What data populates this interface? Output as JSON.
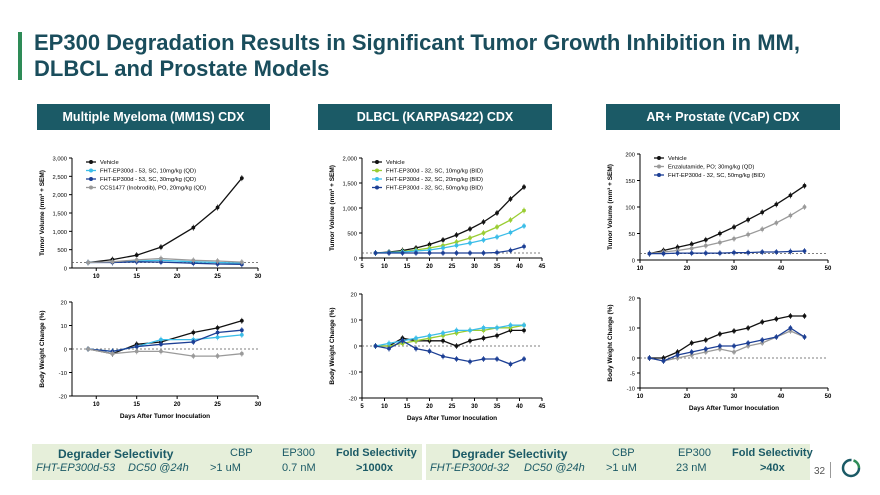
{
  "title": "EP300 Degradation Results in Significant Tumor Growth Inhibition in MM, DLBCL and Prostate Models",
  "panels": [
    {
      "header": "Multiple Myeloma (MM1S) CDX"
    },
    {
      "header": "DLBCL (KARPAS422) CDX"
    },
    {
      "header": "AR+ Prostate (VCaP) CDX"
    }
  ],
  "footer": {
    "left": {
      "heading": "Degrader Selectivity",
      "col1": "CBP",
      "col2": "EP300",
      "col3": "Fold Selectivity",
      "compound": "FHT-EP300d-53",
      "dc50": "DC50 @24h",
      "v1": ">1 uM",
      "v2": "0.7 nM",
      "v3": ">1000x"
    },
    "right": {
      "heading": "Degrader Selectivity",
      "col1": "CBP",
      "col2": "EP300",
      "col3": "Fold Selectivity",
      "compound": "FHT-EP300d-32",
      "dc50": "DC50 @24h",
      "v1": ">1 uM",
      "v2": "23 nM",
      "v3": ">40x"
    }
  },
  "page_number": "32",
  "colors": {
    "black": "#111111",
    "green": "#9acd32",
    "cyan": "#3bbde8",
    "navy": "#1c3f95",
    "grey": "#9a9a9a",
    "header": "#1b5a66",
    "footer_bg": "#e6efda"
  },
  "chart_data": [
    {
      "id": "mm-tumor",
      "type": "line",
      "ylabel": "Tumor Volume (mm³ + SEM)",
      "xlabel": "",
      "xlim": [
        7,
        30
      ],
      "ylim": [
        0,
        3000
      ],
      "xticks": [
        10,
        15,
        20,
        25,
        30
      ],
      "yticks": [
        0,
        500,
        1000,
        1500,
        2000,
        2500,
        3000
      ],
      "ytick_labels": [
        "0",
        "500",
        "1,000",
        "1,500",
        "2,000",
        "2,500",
        "3,000"
      ],
      "legend": [
        "Vehicle",
        "FHT-EP300d - 53, SC, 10mg/kg (QD)",
        "FHT-EP300d - 53, SC, 30mg/kg (QD)",
        "CCS1477 (Inobrodib), PO, 20mg/kg (QD)"
      ],
      "series": [
        {
          "name": "Vehicle",
          "color": "#111111",
          "x": [
            9,
            12,
            15,
            18,
            22,
            25,
            28
          ],
          "y": [
            150,
            230,
            350,
            570,
            1100,
            1650,
            2450
          ]
        },
        {
          "name": "FHT-EP300d - 53, SC, 10mg/kg (QD)",
          "color": "#3bbde8",
          "x": [
            9,
            12,
            15,
            18,
            22,
            25,
            28
          ],
          "y": [
            150,
            160,
            190,
            210,
            170,
            150,
            130
          ]
        },
        {
          "name": "FHT-EP300d - 53, SC, 30mg/kg (QD)",
          "color": "#1c3f95",
          "x": [
            9,
            12,
            15,
            18,
            22,
            25,
            28
          ],
          "y": [
            150,
            150,
            170,
            160,
            130,
            110,
            100
          ]
        },
        {
          "name": "CCS1477 (Inobrodib), PO, 20mg/kg (QD)",
          "color": "#9a9a9a",
          "x": [
            9,
            12,
            15,
            18,
            22,
            25,
            28
          ],
          "y": [
            150,
            170,
            220,
            260,
            210,
            190,
            160
          ]
        }
      ]
    },
    {
      "id": "dlbcl-tumor",
      "type": "line",
      "ylabel": "Tumor Volume (mm³ + SEM)",
      "xlabel": "",
      "xlim": [
        5,
        45
      ],
      "ylim": [
        0,
        2000
      ],
      "xticks": [
        5,
        10,
        15,
        20,
        25,
        30,
        35,
        40,
        45
      ],
      "yticks": [
        0,
        500,
        1000,
        1500,
        2000
      ],
      "ytick_labels": [
        "0",
        "500",
        "1,000",
        "1,500",
        "2,000"
      ],
      "legend": [
        "Vehicle",
        "FHT-EP300d - 32, SC, 10mg/kg (BID)",
        "FHT-EP300d - 32, SC, 20mg/kg (BID)",
        "FHT-EP300d - 32, SC, 50mg/kg (BID)"
      ],
      "series": [
        {
          "name": "Vehicle",
          "color": "#111111",
          "x": [
            8,
            11,
            14,
            17,
            20,
            23,
            26,
            29,
            32,
            35,
            38,
            41
          ],
          "y": [
            100,
            120,
            150,
            200,
            270,
            360,
            460,
            580,
            720,
            900,
            1180,
            1420
          ]
        },
        {
          "name": "FHT-EP300d - 32, SC, 10mg/kg (BID)",
          "color": "#9acd32",
          "x": [
            8,
            11,
            14,
            17,
            20,
            23,
            26,
            29,
            32,
            35,
            38,
            41
          ],
          "y": [
            100,
            110,
            130,
            160,
            200,
            250,
            320,
            400,
            500,
            620,
            760,
            950
          ]
        },
        {
          "name": "FHT-EP300d - 32, SC, 20mg/kg (BID)",
          "color": "#3bbde8",
          "x": [
            8,
            11,
            14,
            17,
            20,
            23,
            26,
            29,
            32,
            35,
            38,
            41
          ],
          "y": [
            100,
            110,
            120,
            140,
            160,
            200,
            250,
            300,
            360,
            420,
            510,
            640
          ]
        },
        {
          "name": "FHT-EP300d - 32, SC, 50mg/kg (BID)",
          "color": "#1c3f95",
          "x": [
            8,
            11,
            14,
            17,
            20,
            23,
            26,
            29,
            32,
            35,
            38,
            41
          ],
          "y": [
            100,
            100,
            100,
            100,
            100,
            100,
            100,
            100,
            100,
            110,
            150,
            230
          ]
        }
      ]
    },
    {
      "id": "prostate-tumor",
      "type": "line",
      "ylabel": "Tumor Volume (mm³ + SEM)",
      "xlabel": "",
      "xlim": [
        10,
        50
      ],
      "ylim": [
        0,
        200
      ],
      "xticks": [
        10,
        20,
        30,
        40,
        50
      ],
      "yticks": [
        0,
        50,
        100,
        150,
        200
      ],
      "ytick_labels": [
        "0",
        "50",
        "100",
        "150",
        "200"
      ],
      "legend": [
        "Vehicle",
        "Enzalutamide, PO; 30mg/kg (QD)",
        "FHT-EP300d - 32, SC, 50mg/kg (BID)"
      ],
      "series": [
        {
          "name": "Vehicle",
          "color": "#111111",
          "x": [
            12,
            15,
            18,
            21,
            24,
            27,
            30,
            33,
            36,
            39,
            42,
            45
          ],
          "y": [
            12,
            18,
            24,
            30,
            38,
            50,
            62,
            76,
            90,
            105,
            122,
            140
          ]
        },
        {
          "name": "Enzalutamide, PO; 30mg/kg (QD)",
          "color": "#9a9a9a",
          "x": [
            12,
            15,
            18,
            21,
            24,
            27,
            30,
            33,
            36,
            39,
            42,
            45
          ],
          "y": [
            12,
            15,
            18,
            22,
            27,
            33,
            40,
            48,
            58,
            70,
            84,
            100
          ]
        },
        {
          "name": "FHT-EP300d - 32, SC, 50mg/kg (BID)",
          "color": "#1c3f95",
          "x": [
            12,
            15,
            18,
            21,
            24,
            27,
            30,
            33,
            36,
            39,
            42,
            45
          ],
          "y": [
            12,
            12,
            13,
            13,
            13,
            13,
            14,
            14,
            15,
            15,
            16,
            17
          ]
        }
      ]
    },
    {
      "id": "mm-bw",
      "type": "line",
      "ylabel": "Body Weight Change (%)",
      "xlabel": "Days After Tumor Inoculation",
      "xlim": [
        7,
        30
      ],
      "ylim": [
        -20,
        20
      ],
      "xticks": [
        10,
        15,
        20,
        25,
        30
      ],
      "yticks": [
        -20,
        -10,
        0,
        10,
        20
      ],
      "ytick_labels": [
        "-20",
        "-10",
        "0",
        "10",
        "20"
      ],
      "series": [
        {
          "name": "Vehicle",
          "color": "#111111",
          "x": [
            9,
            12,
            15,
            18,
            22,
            25,
            28
          ],
          "y": [
            0,
            -2,
            2,
            3,
            7,
            9,
            12
          ]
        },
        {
          "name": "FHT-EP300d - 53, SC, 10mg/kg (QD)",
          "color": "#3bbde8",
          "x": [
            9,
            12,
            15,
            18,
            22,
            25,
            28
          ],
          "y": [
            0,
            -1,
            1,
            4,
            4,
            5,
            6
          ]
        },
        {
          "name": "FHT-EP300d - 53, SC, 30mg/kg (QD)",
          "color": "#1c3f95",
          "x": [
            9,
            12,
            15,
            18,
            22,
            25,
            28
          ],
          "y": [
            0,
            -1,
            1,
            2,
            3,
            7,
            8
          ]
        },
        {
          "name": "CCS1477 (Inobrodib), PO, 20mg/kg (QD)",
          "color": "#9a9a9a",
          "x": [
            9,
            12,
            15,
            18,
            22,
            25,
            28
          ],
          "y": [
            0,
            -2,
            -1,
            -1,
            -3,
            -3,
            -2
          ]
        }
      ]
    },
    {
      "id": "dlbcl-bw",
      "type": "line",
      "ylabel": "Body Weight Change (%)",
      "xlabel": "Days After Tumor Inoculation",
      "xlim": [
        5,
        45
      ],
      "ylim": [
        -20,
        20
      ],
      "xticks": [
        5,
        10,
        15,
        20,
        25,
        30,
        35,
        40,
        45
      ],
      "yticks": [
        -20,
        -10,
        0,
        10,
        20
      ],
      "ytick_labels": [
        "-20",
        "-10",
        "0",
        "10",
        "20"
      ],
      "series": [
        {
          "name": "Vehicle",
          "color": "#111111",
          "x": [
            8,
            11,
            14,
            17,
            20,
            23,
            26,
            29,
            32,
            35,
            38,
            41
          ],
          "y": [
            0,
            0,
            3,
            2,
            2,
            2,
            0,
            2,
            3,
            4,
            6,
            6
          ]
        },
        {
          "name": "FHT-EP300d - 32, SC, 10mg/kg (BID)",
          "color": "#9acd32",
          "x": [
            8,
            11,
            14,
            17,
            20,
            23,
            26,
            29,
            32,
            35,
            38,
            41
          ],
          "y": [
            0,
            0,
            1,
            2,
            3,
            4,
            5,
            6,
            6,
            7,
            7,
            8
          ]
        },
        {
          "name": "FHT-EP300d - 32, SC, 20mg/kg (BID)",
          "color": "#3bbde8",
          "x": [
            8,
            11,
            14,
            17,
            20,
            23,
            26,
            29,
            32,
            35,
            38,
            41
          ],
          "y": [
            0,
            1,
            2,
            3,
            4,
            5,
            6,
            6,
            7,
            7,
            8,
            8
          ]
        },
        {
          "name": "FHT-EP300d - 32, SC, 50mg/kg (BID)",
          "color": "#1c3f95",
          "x": [
            8,
            11,
            14,
            17,
            20,
            23,
            26,
            29,
            32,
            35,
            38,
            41
          ],
          "y": [
            0,
            -1,
            2,
            -1,
            -2,
            -4,
            -5,
            -6,
            -5,
            -5,
            -7,
            -5
          ]
        }
      ]
    },
    {
      "id": "prostate-bw",
      "type": "line",
      "ylabel": "Body Weight Change (%)",
      "xlabel": "Days After Tumor Inoculation",
      "xlim": [
        10,
        50
      ],
      "ylim": [
        -10,
        20
      ],
      "xticks": [
        10,
        20,
        30,
        40,
        50
      ],
      "yticks": [
        -10,
        -5,
        0,
        10,
        20
      ],
      "ytick_labels": [
        "-10",
        "-5",
        "0",
        "10",
        "20"
      ],
      "series": [
        {
          "name": "Vehicle",
          "color": "#111111",
          "x": [
            12,
            15,
            18,
            21,
            24,
            27,
            30,
            33,
            36,
            39,
            42,
            45
          ],
          "y": [
            0,
            0,
            2,
            5,
            6,
            8,
            9,
            10,
            12,
            13,
            14,
            14
          ]
        },
        {
          "name": "Enzalutamide, PO; 30mg/kg (QD)",
          "color": "#9a9a9a",
          "x": [
            12,
            15,
            18,
            21,
            24,
            27,
            30,
            33,
            36,
            39,
            42,
            45
          ],
          "y": [
            0,
            -1,
            0,
            1,
            2,
            3,
            2,
            4,
            5,
            7,
            9,
            7
          ]
        },
        {
          "name": "FHT-EP300d - 32, SC, 50mg/kg (BID)",
          "color": "#1c3f95",
          "x": [
            12,
            15,
            18,
            21,
            24,
            27,
            30,
            33,
            36,
            39,
            42,
            45
          ],
          "y": [
            0,
            -1,
            1,
            2,
            3,
            4,
            4,
            5,
            6,
            7,
            10,
            7
          ]
        }
      ]
    }
  ]
}
